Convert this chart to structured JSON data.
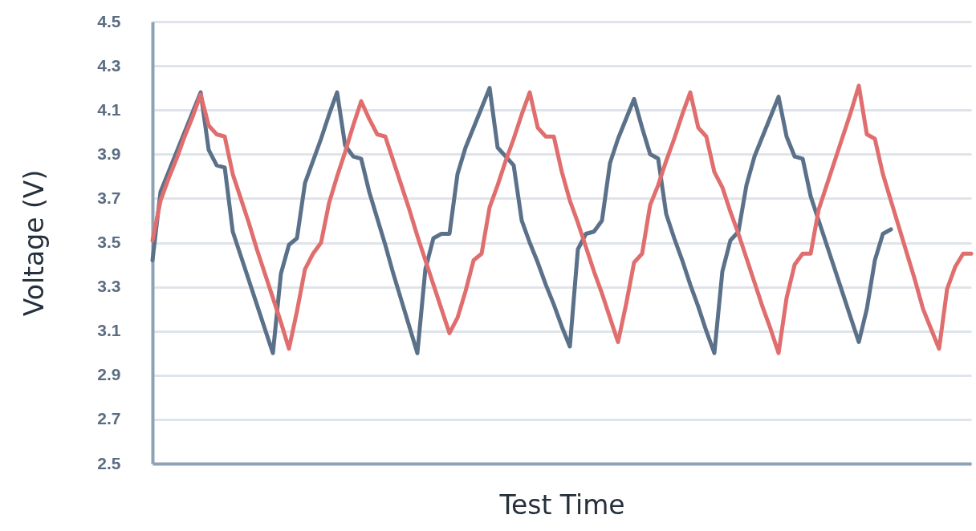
{
  "chart_data": {
    "type": "line",
    "xlabel": "Test Time",
    "ylabel": "Voltage (V)",
    "categories": [
      null,
      null,
      null,
      null,
      null,
      null,
      null,
      null,
      null,
      null,
      null,
      null,
      null,
      null,
      null,
      null,
      null,
      null,
      null,
      null,
      null,
      null,
      null,
      null,
      null,
      null,
      null,
      null,
      null,
      null,
      null,
      null,
      null,
      null,
      null,
      null,
      null,
      null,
      null,
      null,
      null,
      null,
      null,
      null,
      null,
      null,
      null,
      null,
      null,
      null,
      null,
      null,
      null,
      null,
      null,
      null,
      null,
      null,
      null,
      null,
      null,
      null,
      null,
      null,
      null,
      null,
      null,
      null,
      null,
      null,
      null,
      null,
      null,
      null,
      null,
      null,
      null,
      null,
      null,
      null,
      null,
      null,
      null,
      null,
      null,
      null,
      null,
      null,
      null,
      null,
      null,
      null,
      null,
      null,
      null,
      null,
      null,
      null,
      null,
      null,
      null,
      null,
      null
    ],
    "series": [
      {
        "color": "#5b7189",
        "values": [
          3.42,
          3.73,
          3.82,
          3.91,
          4.0,
          4.09,
          4.18,
          3.92,
          3.85,
          3.84,
          3.55,
          3.44,
          3.33,
          3.22,
          3.11,
          3.0,
          3.36,
          3.49,
          3.52,
          3.77,
          3.87,
          3.97,
          4.08,
          4.18,
          3.94,
          3.89,
          3.88,
          3.73,
          3.61,
          3.49,
          3.36,
          3.24,
          3.12,
          3.0,
          3.38,
          3.52,
          3.54,
          3.54,
          3.81,
          3.93,
          4.02,
          4.11,
          4.2,
          3.93,
          3.89,
          3.85,
          3.6,
          3.5,
          3.41,
          3.31,
          3.22,
          3.12,
          3.03,
          3.47,
          3.54,
          3.55,
          3.6,
          3.86,
          3.97,
          4.06,
          4.15,
          4.02,
          3.9,
          3.88,
          3.63,
          3.52,
          3.42,
          3.31,
          3.21,
          3.1,
          3.0,
          3.37,
          3.51,
          3.55,
          3.76,
          3.89,
          3.98,
          4.07,
          4.16,
          3.98,
          3.89,
          3.88,
          3.71,
          3.6,
          3.49,
          3.38,
          3.27,
          3.16,
          3.05,
          3.2,
          3.42,
          3.54,
          3.56,
          null,
          null,
          null,
          null,
          null,
          null,
          null,
          null,
          null,
          null
        ]
      },
      {
        "color": "#e06e6e",
        "values": [
          3.51,
          3.69,
          3.79,
          3.88,
          3.98,
          4.07,
          4.17,
          4.03,
          3.99,
          3.98,
          3.81,
          3.7,
          3.59,
          3.47,
          3.36,
          3.25,
          3.14,
          3.02,
          3.19,
          3.38,
          3.45,
          3.5,
          3.68,
          3.8,
          3.91,
          4.03,
          4.14,
          4.06,
          3.99,
          3.98,
          3.87,
          3.76,
          3.65,
          3.53,
          3.42,
          3.31,
          3.2,
          3.09,
          3.16,
          3.28,
          3.42,
          3.45,
          3.66,
          3.76,
          3.87,
          3.97,
          4.08,
          4.18,
          4.02,
          3.98,
          3.98,
          3.82,
          3.69,
          3.59,
          3.48,
          3.37,
          3.27,
          3.16,
          3.05,
          3.22,
          3.41,
          3.45,
          3.67,
          3.76,
          3.87,
          3.97,
          4.08,
          4.18,
          4.02,
          3.98,
          3.82,
          3.75,
          3.64,
          3.54,
          3.43,
          3.32,
          3.21,
          3.11,
          3.0,
          3.25,
          3.4,
          3.45,
          3.45,
          3.65,
          3.76,
          3.87,
          3.98,
          4.09,
          4.21,
          3.99,
          3.97,
          3.81,
          3.69,
          3.57,
          3.45,
          3.33,
          3.2,
          3.11,
          3.02,
          3.29,
          3.39,
          3.45,
          3.45
        ]
      }
    ],
    "ylim": [
      2.5,
      4.5
    ],
    "yticks": [
      2.5,
      2.7,
      2.9,
      3.1,
      3.3,
      3.5,
      3.7,
      3.9,
      4.1,
      4.3,
      4.5
    ],
    "grid": "y",
    "tick_labels": "y",
    "line_style": "solid"
  }
}
